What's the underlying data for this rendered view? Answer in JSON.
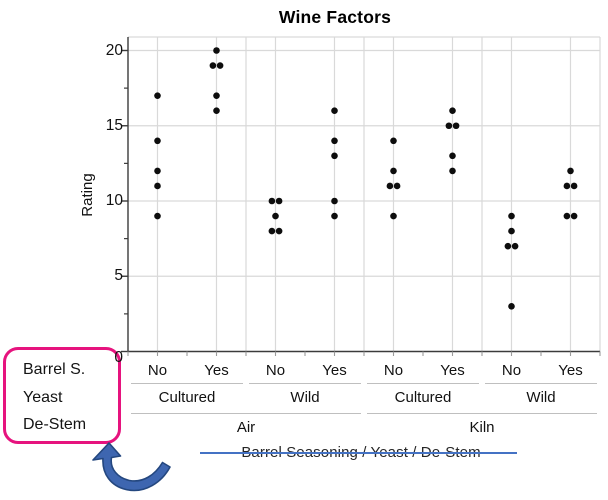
{
  "title": "Wine Factors",
  "y_axis": {
    "label": "Rating",
    "ticks": [
      20,
      15,
      10,
      5,
      0
    ],
    "minor_ticks": [
      17.5,
      12.5,
      7.5,
      2.5
    ],
    "min": 0,
    "max": 21
  },
  "x_axis": {
    "level1_labels": [
      "No",
      "Yes",
      "No",
      "Yes",
      "No",
      "Yes",
      "No",
      "Yes"
    ],
    "level2_labels": [
      "Cultured",
      "Wild",
      "Cultured",
      "Wild"
    ],
    "level3_labels": [
      "Air",
      "Kiln"
    ]
  },
  "chart_data": {
    "type": "scatter",
    "title": "Wine Factors",
    "ylabel": "Rating",
    "ylim": [
      0,
      21
    ],
    "grid": true,
    "factor_hierarchy": [
      "De-Stem",
      "Yeast",
      "Barrel Seasoning"
    ],
    "groups": [
      {
        "de_stem": "Air",
        "yeast": "Cultured",
        "barrel_seasoning": "No",
        "ratings": [
          17,
          14,
          12,
          11,
          9
        ]
      },
      {
        "de_stem": "Air",
        "yeast": "Cultured",
        "barrel_seasoning": "Yes",
        "ratings": [
          20,
          19,
          19,
          17,
          16
        ]
      },
      {
        "de_stem": "Air",
        "yeast": "Wild",
        "barrel_seasoning": "No",
        "ratings": [
          10,
          10,
          9,
          8,
          8
        ]
      },
      {
        "de_stem": "Air",
        "yeast": "Wild",
        "barrel_seasoning": "Yes",
        "ratings": [
          16,
          14,
          13,
          10,
          9
        ]
      },
      {
        "de_stem": "Kiln",
        "yeast": "Cultured",
        "barrel_seasoning": "No",
        "ratings": [
          14,
          12,
          11,
          11,
          9
        ]
      },
      {
        "de_stem": "Kiln",
        "yeast": "Cultured",
        "barrel_seasoning": "Yes",
        "ratings": [
          16,
          15,
          15,
          13,
          12
        ]
      },
      {
        "de_stem": "Kiln",
        "yeast": "Wild",
        "barrel_seasoning": "No",
        "ratings": [
          9,
          8,
          7,
          7,
          3
        ]
      },
      {
        "de_stem": "Kiln",
        "yeast": "Wild",
        "barrel_seasoning": "Yes",
        "ratings": [
          12,
          11,
          11,
          9,
          9
        ]
      }
    ]
  },
  "callout_box": {
    "lines": [
      "Barrel S.",
      "Yeast",
      "De-Stem"
    ],
    "border_color": "#E6137E"
  },
  "annotation_arrow": {
    "icon": "curved-up-arrow-icon",
    "fill_color": "#3E66B0",
    "outline_color": "#24477F"
  },
  "strikethrough_note": {
    "text": "Barrel Seasoning / Yeast / De-Stem",
    "line_color": "#4472C4"
  },
  "colors": {
    "dot": "#0d0d0d",
    "gridline": "#d9d9d9",
    "axis": "#3b3b3b",
    "separator": "#bfbfbf"
  }
}
